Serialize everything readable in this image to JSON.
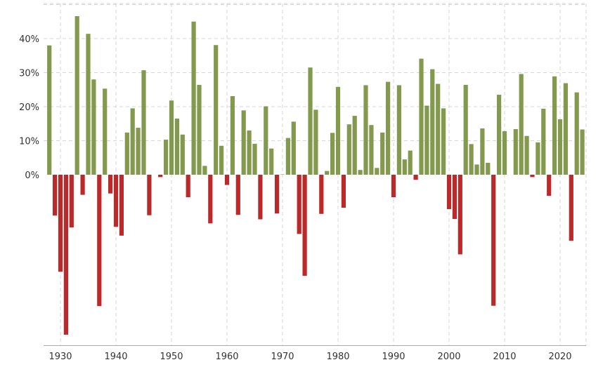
{
  "chart_data": {
    "type": "bar",
    "title": "",
    "xlabel": "",
    "ylabel": "",
    "y_tick_labels": [
      "0%",
      "10%",
      "20%",
      "30%",
      "40%"
    ],
    "x_tick_labels": [
      "1930",
      "1940",
      "1950",
      "1960",
      "1970",
      "1980",
      "1990",
      "2000",
      "2010",
      "2020"
    ],
    "ylim": [
      -48,
      52
    ],
    "grid": true,
    "colors": {
      "positive": "#83994e",
      "negative": "#bb2a2a",
      "grid": "#d6d6d6",
      "axis": "#aaaaaa"
    },
    "categories": [
      1928,
      1929,
      1930,
      1931,
      1932,
      1933,
      1934,
      1935,
      1936,
      1937,
      1938,
      1939,
      1940,
      1941,
      1942,
      1943,
      1944,
      1945,
      1946,
      1947,
      1948,
      1949,
      1950,
      1951,
      1952,
      1953,
      1954,
      1955,
      1956,
      1957,
      1958,
      1959,
      1960,
      1961,
      1962,
      1963,
      1964,
      1965,
      1966,
      1967,
      1968,
      1969,
      1970,
      1971,
      1972,
      1973,
      1974,
      1975,
      1976,
      1977,
      1978,
      1979,
      1980,
      1981,
      1982,
      1983,
      1984,
      1985,
      1986,
      1987,
      1988,
      1989,
      1990,
      1991,
      1992,
      1993,
      1994,
      1995,
      1996,
      1997,
      1998,
      1999,
      2000,
      2001,
      2002,
      2003,
      2004,
      2005,
      2006,
      2007,
      2008,
      2009,
      2010,
      2011,
      2012,
      2013,
      2014,
      2015,
      2016,
      2017,
      2018,
      2019,
      2020,
      2021,
      2022,
      2023,
      2024
    ],
    "values": [
      38,
      -12,
      -28.5,
      -47,
      -15.5,
      46.6,
      -5.9,
      41.4,
      28,
      -38.6,
      25.3,
      -5.5,
      -15.3,
      -17.9,
      12.4,
      19.5,
      13.8,
      30.7,
      -11.9,
      0,
      -0.7,
      10.3,
      21.8,
      16.5,
      11.8,
      -6.6,
      45,
      26.4,
      2.6,
      -14.3,
      38.1,
      8.5,
      -3,
      23.1,
      -11.8,
      18.9,
      13,
      9.1,
      -13.1,
      20.1,
      7.7,
      -11.4,
      0.1,
      10.8,
      15.6,
      -17.4,
      -29.7,
      31.5,
      19.1,
      -11.5,
      1.1,
      12.3,
      25.8,
      -9.7,
      14.8,
      17.3,
      1.4,
      26.3,
      14.6,
      2,
      12.4,
      27.3,
      -6.6,
      26.3,
      4.5,
      7.1,
      -1.5,
      34.1,
      20.3,
      31,
      26.7,
      19.5,
      -10.1,
      -13,
      -23.4,
      26.4,
      9,
      3,
      13.6,
      3.5,
      -38.5,
      23.5,
      12.8,
      0,
      13.4,
      29.6,
      11.4,
      -0.7,
      9.5,
      19.4,
      -6.2,
      28.9,
      16.3,
      26.9,
      -19.4,
      24.2,
      13.3
    ]
  }
}
